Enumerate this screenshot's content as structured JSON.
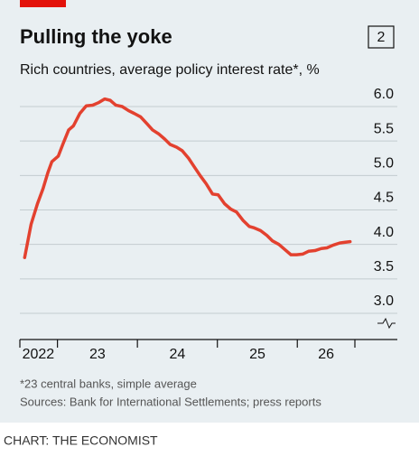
{
  "chart_data": {
    "type": "line",
    "chart_number": "2",
    "title": "Pulling the yoke",
    "subtitle": "Rich countries, average policy interest rate*, %",
    "footnote": "*23 central banks, simple average",
    "source": "Sources: Bank for International Settlements; press reports",
    "credit": "CHART: THE ECONOMIST",
    "x": [
      2022.59,
      2022.67,
      2022.75,
      2022.82,
      2022.88,
      2022.93,
      2023.01,
      2023.07,
      2023.14,
      2023.2,
      2023.28,
      2023.36,
      2023.44,
      2023.52,
      2023.59,
      2023.66,
      2023.73,
      2023.81,
      2023.89,
      2023.96,
      2024.04,
      2024.12,
      2024.19,
      2024.27,
      2024.34,
      2024.41,
      2024.49,
      2024.56,
      2024.64,
      2024.72,
      2024.79,
      2024.86,
      2024.94,
      2025.01,
      2025.09,
      2025.17,
      2025.24,
      2025.32,
      2025.4,
      2025.46,
      2025.54,
      2025.62,
      2025.69,
      2025.77,
      2025.85,
      2025.92,
      2025.99,
      2026.07,
      2026.14,
      2026.22,
      2026.3,
      2026.37,
      2026.45,
      2026.53,
      2026.59,
      2026.66
    ],
    "series": [
      {
        "color": "#e3412f",
        "values": [
          3.81,
          4.29,
          4.59,
          4.81,
          5.04,
          5.2,
          5.28,
          5.46,
          5.66,
          5.72,
          5.9,
          6.01,
          6.02,
          6.06,
          6.11,
          6.09,
          6.02,
          6.0,
          5.94,
          5.9,
          5.85,
          5.75,
          5.66,
          5.6,
          5.53,
          5.45,
          5.41,
          5.36,
          5.25,
          5.11,
          4.99,
          4.88,
          4.73,
          4.72,
          4.59,
          4.51,
          4.47,
          4.35,
          4.26,
          4.24,
          4.2,
          4.13,
          4.05,
          4.0,
          3.92,
          3.85,
          3.85,
          3.86,
          3.9,
          3.91,
          3.94,
          3.95,
          3.99,
          4.02,
          4.03,
          4.04
        ]
      }
    ],
    "xlim": [
      2022.53,
      2026.72
    ],
    "xticks": [
      2023,
      2024,
      2025,
      2026
    ],
    "xtick_labels": [
      {
        "value": 2022.76,
        "label": "2022"
      },
      {
        "value": 2023.5,
        "label": "23"
      },
      {
        "value": 2024.5,
        "label": "24"
      },
      {
        "value": 2025.5,
        "label": "25"
      },
      {
        "value": 2026.36,
        "label": "26"
      }
    ],
    "ylim": [
      3.0,
      6.0
    ],
    "yticks": [
      {
        "value": 3.0,
        "label": "3.0"
      },
      {
        "value": 3.5,
        "label": "3.5"
      },
      {
        "value": 4.0,
        "label": "4.0"
      },
      {
        "value": 4.5,
        "label": "4.5"
      },
      {
        "value": 5.0,
        "label": "5.0"
      },
      {
        "value": 5.5,
        "label": "5.5"
      },
      {
        "value": 6.0,
        "label": "6.0"
      }
    ],
    "grid": true
  }
}
